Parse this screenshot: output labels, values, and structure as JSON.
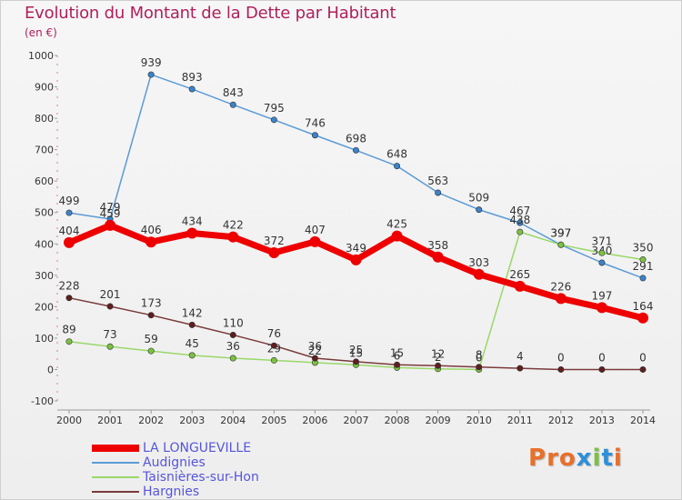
{
  "header": {
    "title": "Evolution du Montant de la Dette par Habitant",
    "subtitle": "(en €)"
  },
  "logo": {
    "text": "Proxiti",
    "colors": [
      "#e8702a",
      "#e8702a",
      "#e8702a",
      "#2f8fd8",
      "#7cc142",
      "#2f8fd8",
      "#e8702a"
    ]
  },
  "chart_data": {
    "type": "line",
    "x": [
      2000,
      2001,
      2002,
      2003,
      2004,
      2005,
      2006,
      2007,
      2008,
      2009,
      2010,
      2011,
      2012,
      2013,
      2014
    ],
    "ylim": [
      -100,
      1000
    ],
    "yticks": [
      -100,
      0,
      100,
      200,
      300,
      400,
      500,
      600,
      700,
      800,
      900,
      1000
    ],
    "grid": false,
    "legend_position": "bottom-left",
    "series": [
      {
        "name": "Audignies",
        "color": "#5b9bd5",
        "dot": "#3b83c8",
        "values": [
          499,
          479,
          939,
          893,
          843,
          795,
          746,
          698,
          648,
          563,
          509,
          467,
          397,
          340,
          291
        ],
        "labels": [
          "499",
          "479",
          "939",
          "893",
          "843",
          "795",
          "746",
          "698",
          "648",
          "563",
          "509",
          "467",
          "397",
          "340",
          "291"
        ]
      },
      {
        "name": "Taisnières-sur-Hon",
        "color": "#9ad86a",
        "dot": "#7cc142",
        "values": [
          89,
          73,
          59,
          45,
          36,
          29,
          22,
          15,
          6,
          2,
          0,
          438,
          397,
          371,
          350
        ],
        "labels": [
          "89",
          "73",
          "59",
          "45",
          "36",
          "29",
          "22",
          "15",
          "6",
          "2",
          "0",
          "438",
          "397",
          "371",
          "350"
        ]
      },
      {
        "name": "Hargnies",
        "color": "#7a3a3a",
        "dot": "#5e1f1f",
        "values": [
          228,
          201,
          173,
          142,
          110,
          76,
          36,
          25,
          15,
          12,
          8,
          4,
          0,
          0,
          0
        ],
        "labels": [
          "228",
          "201",
          "173",
          "142",
          "110",
          "76",
          "36",
          "25",
          "15",
          "12",
          "8",
          "4",
          "0",
          "0",
          "0"
        ]
      },
      {
        "name": "LA LONGUEVILLE",
        "color": "#ee0000",
        "dot": "#ee0000",
        "emphasis": true,
        "values": [
          404,
          459,
          406,
          434,
          422,
          372,
          407,
          349,
          425,
          358,
          303,
          265,
          226,
          197,
          164
        ],
        "labels": [
          "404",
          "459",
          "406",
          "434",
          "422",
          "372",
          "407",
          "349",
          "425",
          "358",
          "303",
          "265",
          "226",
          "197",
          "164"
        ]
      }
    ],
    "legend_order": [
      "LA LONGUEVILLE",
      "Audignies",
      "Taisnières-sur-Hon",
      "Hargnies"
    ]
  }
}
